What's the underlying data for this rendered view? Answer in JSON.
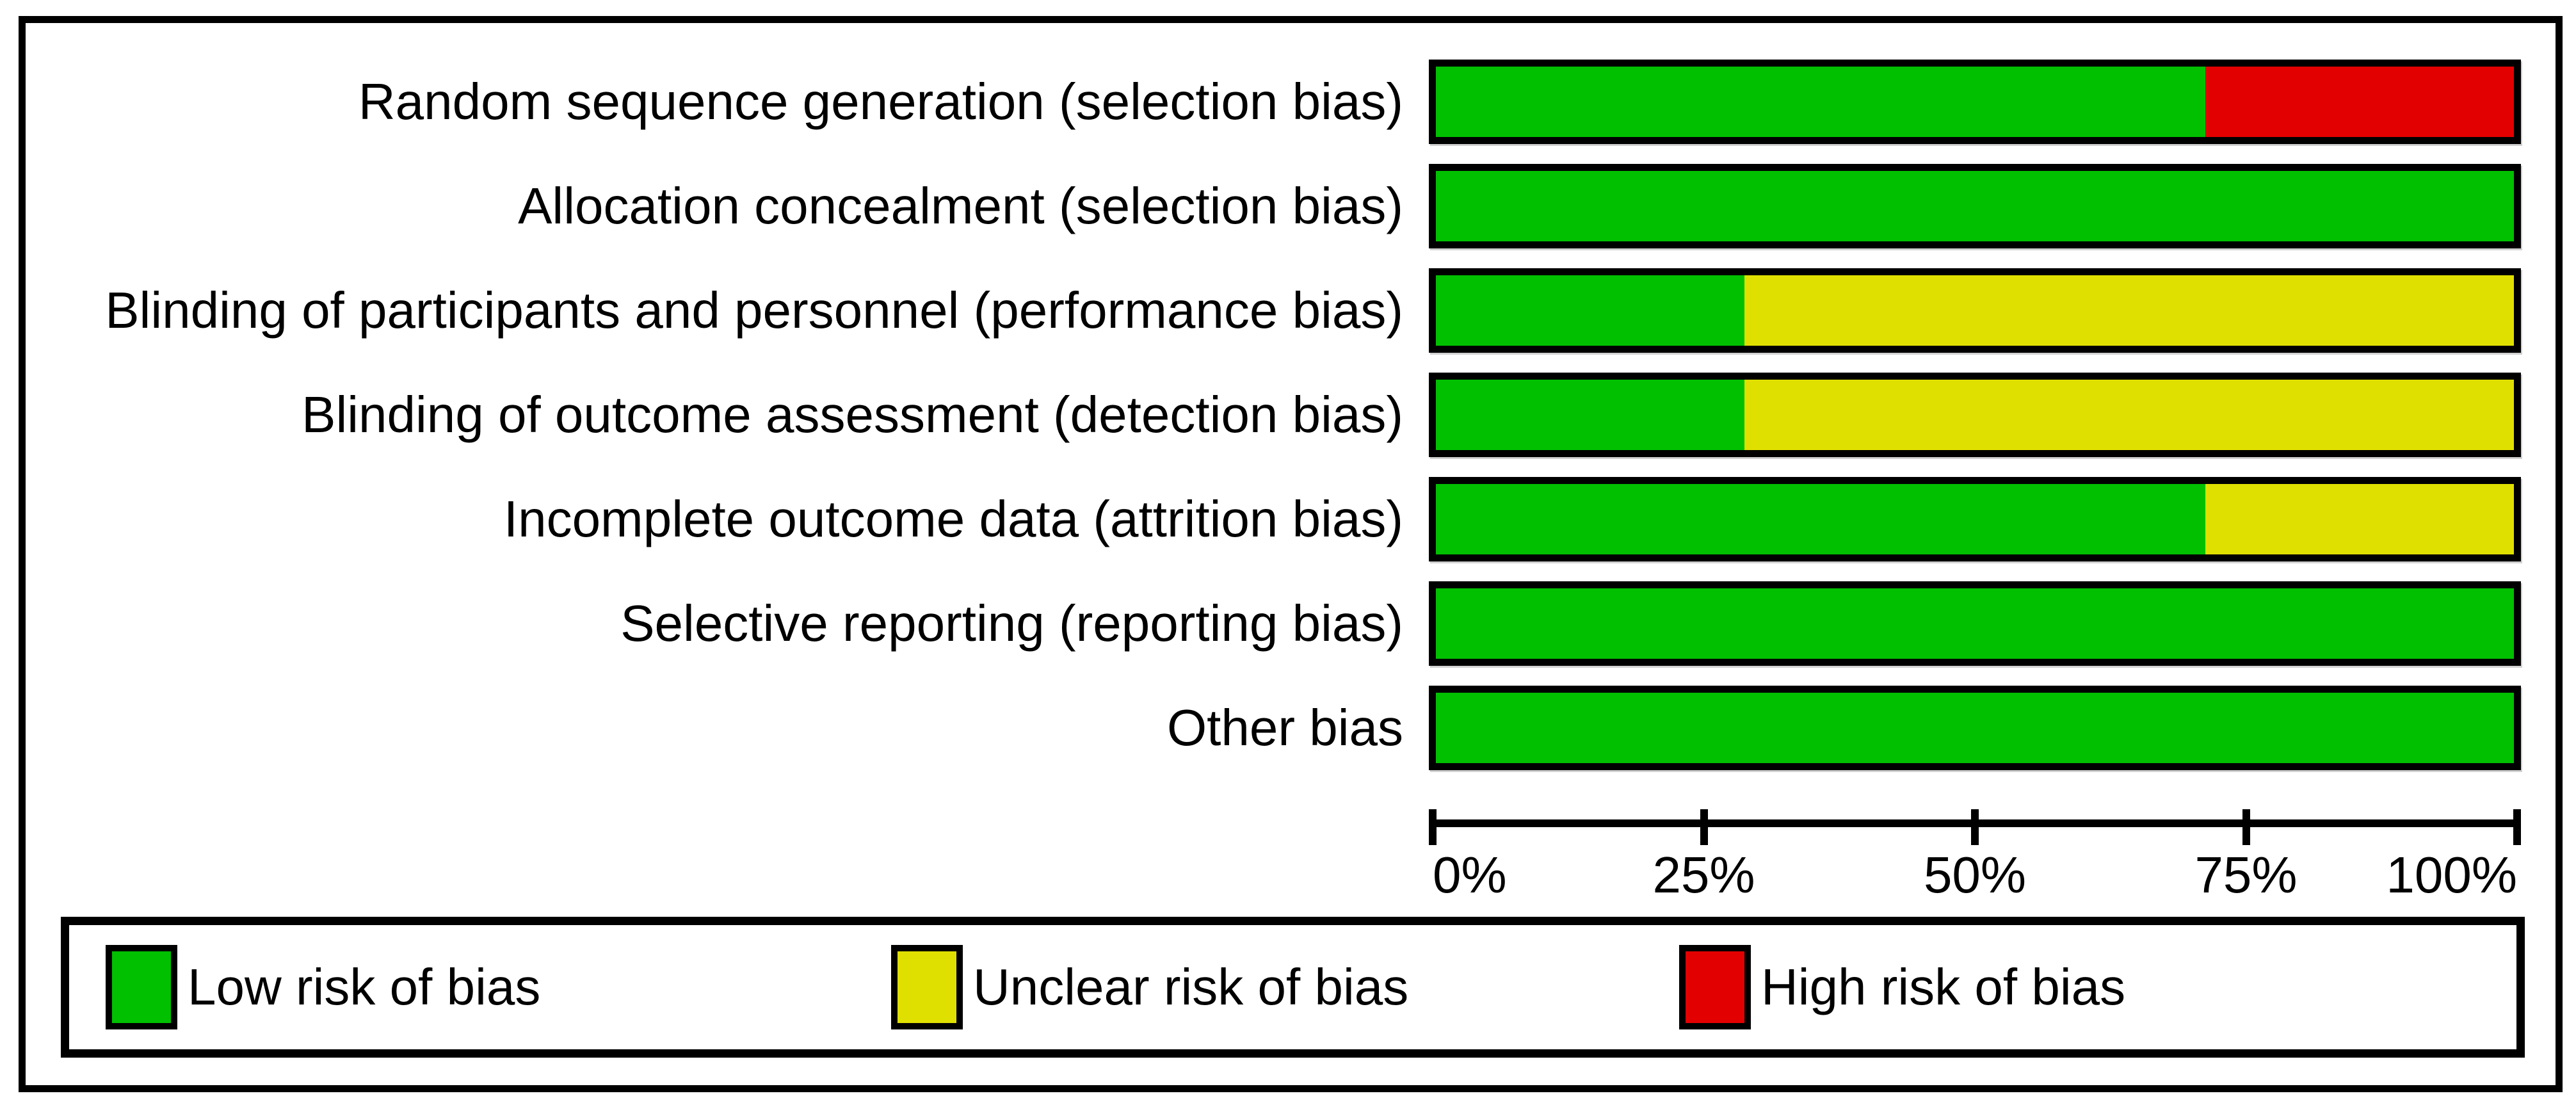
{
  "chart_data": {
    "type": "bar",
    "subtype": "horizontal-stacked-percentage",
    "title": "",
    "categories": [
      "Random sequence generation (selection bias)",
      "Allocation concealment (selection bias)",
      "Blinding of participants and personnel (performance bias)",
      "Blinding of outcome assessment (detection bias)",
      "Incomplete outcome data (attrition bias)",
      "Selective reporting (reporting bias)",
      "Other bias"
    ],
    "series": [
      {
        "name": "Low risk of bias",
        "color": "#00C000",
        "values": [
          71.4,
          100,
          28.6,
          28.6,
          71.4,
          100,
          100
        ]
      },
      {
        "name": "Unclear risk of bias",
        "color": "#E0E000",
        "values": [
          0,
          0,
          71.4,
          71.4,
          28.6,
          0,
          0
        ]
      },
      {
        "name": "High risk of bias",
        "color": "#E30000",
        "values": [
          28.6,
          0,
          0,
          0,
          0,
          0,
          0
        ]
      }
    ],
    "x_axis": {
      "ticks": [
        {
          "label": "0%",
          "value": 0
        },
        {
          "label": "25%",
          "value": 25
        },
        {
          "label": "50%",
          "value": 50
        },
        {
          "label": "75%",
          "value": 75
        },
        {
          "label": "100%",
          "value": 100
        }
      ],
      "range": [
        0,
        100
      ],
      "grid": false
    },
    "legend": {
      "position": "bottom",
      "items": [
        "Low risk of bias",
        "Unclear risk of bias",
        "High risk of bias"
      ]
    }
  },
  "colors": {
    "low_risk": "#00C000",
    "unclear_risk": "#E0E000",
    "high_risk": "#E30000",
    "text": "#000000",
    "frame": "#000000",
    "background": "#FFFFFF"
  }
}
